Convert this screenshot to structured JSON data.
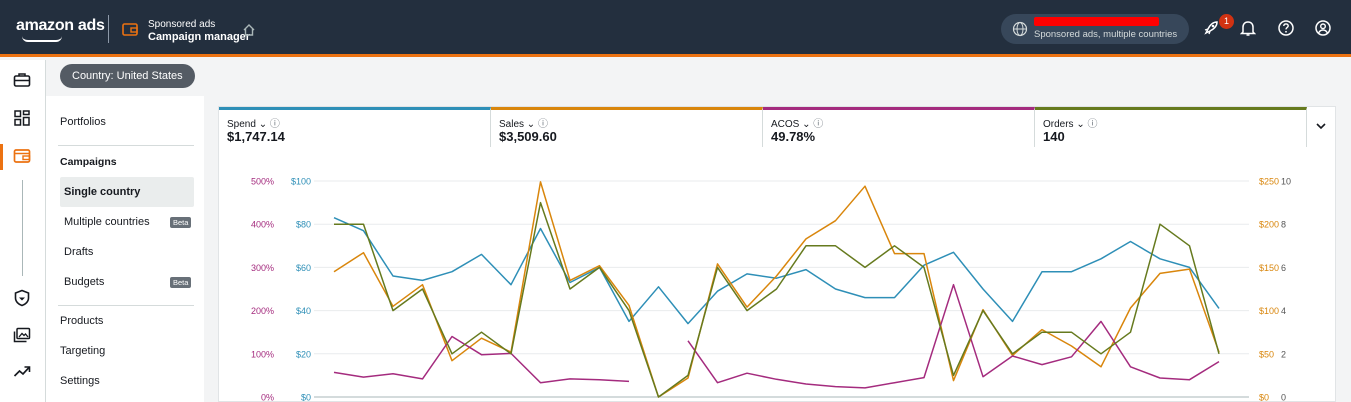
{
  "brand": {
    "name": "amazon ads"
  },
  "product": {
    "kicker": "Sponsored ads",
    "name": "Campaign manager"
  },
  "account": {
    "scope": "Sponsored ads, multiple countries"
  },
  "notifications": {
    "count": "1"
  },
  "country_chip": "Country: United States",
  "nav": {
    "portfolios": "Portfolios",
    "campaigns_header": "Campaigns",
    "single_country": "Single country",
    "multiple_countries": "Multiple countries",
    "drafts": "Drafts",
    "budgets": "Budgets",
    "beta": "Beta",
    "products": "Products",
    "targeting": "Targeting",
    "settings": "Settings"
  },
  "kpis": [
    {
      "label": "Spend",
      "value": "$1,747.14",
      "color": "#2e8fb7"
    },
    {
      "label": "Sales",
      "value": "$3,509.60",
      "color": "#d9860c"
    },
    {
      "label": "ACOS",
      "value": "49.78%",
      "color": "#a42b7e"
    },
    {
      "label": "Orders",
      "value": "140",
      "color": "#667a1e"
    }
  ],
  "icons": {
    "rail": [
      "briefcase-icon",
      "dashboard-icon",
      "campaign-wallet-icon",
      "shield-icon",
      "media-library-icon",
      "trending-icon"
    ],
    "top": [
      "globe-icon",
      "rocket-icon",
      "bell-icon",
      "help-icon",
      "profile-icon"
    ]
  },
  "chart_data": {
    "type": "line",
    "x": [
      1,
      2,
      3,
      4,
      5,
      6,
      7,
      8,
      9,
      10,
      11,
      12,
      13,
      14,
      15,
      16,
      17,
      18,
      19,
      20,
      21,
      22,
      23,
      24,
      25,
      26,
      27,
      28,
      29,
      30,
      31
    ],
    "axes": {
      "acos": {
        "ticks": [
          "0%",
          "100%",
          "200%",
          "300%",
          "400%",
          "500%"
        ],
        "ylim": [
          0,
          500
        ],
        "color": "#a42b7e"
      },
      "spend": {
        "ticks": [
          "$0",
          "$20",
          "$40",
          "$60",
          "$80",
          "$100"
        ],
        "ylim": [
          0,
          100
        ],
        "color": "#2e8fb7"
      },
      "sales": {
        "ticks": [
          "$0",
          "$50",
          "$100",
          "$150",
          "$200",
          "$250"
        ],
        "ylim": [
          0,
          250
        ],
        "color": "#d9860c"
      },
      "orders": {
        "ticks": [
          "0",
          "2",
          "4",
          "6",
          "8",
          "10"
        ],
        "ylim": [
          0,
          10
        ],
        "color": "#555555"
      }
    },
    "series": [
      {
        "name": "Spend",
        "axis": "spend",
        "color": "#2e8fb7",
        "values": [
          83,
          77,
          56,
          54,
          58,
          66,
          52,
          78,
          53,
          60,
          35,
          51,
          34,
          49,
          57,
          55,
          59,
          50,
          46,
          46,
          61,
          67,
          50,
          35,
          58,
          58,
          64,
          72,
          64,
          60,
          41
        ]
      },
      {
        "name": "Sales",
        "axis": "sales",
        "color": "#d9860c",
        "values": [
          145,
          167,
          105,
          130,
          42,
          68,
          52,
          249,
          135,
          152,
          106,
          0,
          22,
          154,
          104,
          140,
          183,
          204,
          244,
          166,
          166,
          19,
          101,
          48,
          78,
          59,
          35,
          103,
          143,
          148,
          52
        ]
      },
      {
        "name": "ACOS",
        "axis": "acos",
        "color": "#a42b7e",
        "values": [
          57,
          46,
          54,
          42,
          140,
          98,
          101,
          33,
          42,
          40,
          36,
          null,
          130,
          33,
          55,
          41,
          30,
          24,
          21,
          33,
          45,
          260,
          47,
          95,
          75,
          93,
          175,
          70,
          44,
          40,
          82
        ]
      },
      {
        "name": "Orders",
        "axis": "orders",
        "color": "#667a1e",
        "values": [
          8,
          8,
          4,
          5,
          2,
          3,
          2,
          9,
          5,
          6,
          4,
          0,
          1,
          6,
          4,
          5,
          7,
          7,
          6,
          7,
          6,
          1,
          4,
          2,
          3,
          3,
          2,
          3,
          8,
          7,
          2
        ]
      }
    ]
  }
}
